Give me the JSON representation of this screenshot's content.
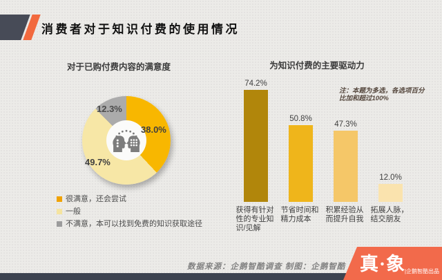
{
  "header": {
    "title": "消费者对于知识付费的使用情况"
  },
  "chart_data": [
    {
      "type": "pie",
      "donut": true,
      "title": "对于已购付费内容的满意度",
      "legend_position": "bottom-left",
      "center_icon": "two-heads-discussion-icon",
      "slices": [
        {
          "label": "很满意，还会尝试",
          "value": 38.0,
          "pct_label": "38.0%",
          "color": "#F8B700",
          "legend_color": "#F0A202"
        },
        {
          "label": "一般",
          "value": 49.7,
          "pct_label": "49.7%",
          "color": "#F7E7A6",
          "legend_color": "#F5E4A0"
        },
        {
          "label": "不满意，本可以找到免费的知识获取途径",
          "value": 12.3,
          "pct_label": "12.3%",
          "color": "#ABABAB",
          "legend_color": "#9C9C9C"
        }
      ]
    },
    {
      "type": "bar",
      "title": "为知识付费的主要驱动力",
      "note": "注：本题为多选，各选项百分比加和超过100%",
      "categories": [
        "获得有针对性的专业知识/见解",
        "节省时间和精力成本",
        "积累经验从而提升自我",
        "拓展人脉，结交朋友"
      ],
      "values": [
        74.2,
        50.8,
        47.3,
        12.0
      ],
      "data_labels": [
        "74.2%",
        "50.8%",
        "47.3%",
        "12.0%"
      ],
      "bar_colors": [
        "#B1860B",
        "#EFB51B",
        "#F5C768",
        "#FAE3AE"
      ],
      "ylim": [
        0,
        80
      ],
      "grid": false,
      "xlabel": "",
      "ylabel": ""
    }
  ],
  "footer": {
    "source": "数据来源：企鹅智酷调查  制图：企鹅智酷",
    "brand": "真·象",
    "brand_sub": "|企鹅智酷出品"
  },
  "colors": {
    "background": "#ECEBE8",
    "header_block": "#474B57",
    "accent_orange": "#F2693E",
    "banner_orange": "#F26A4B",
    "bottom_bar": "#3D4350"
  }
}
